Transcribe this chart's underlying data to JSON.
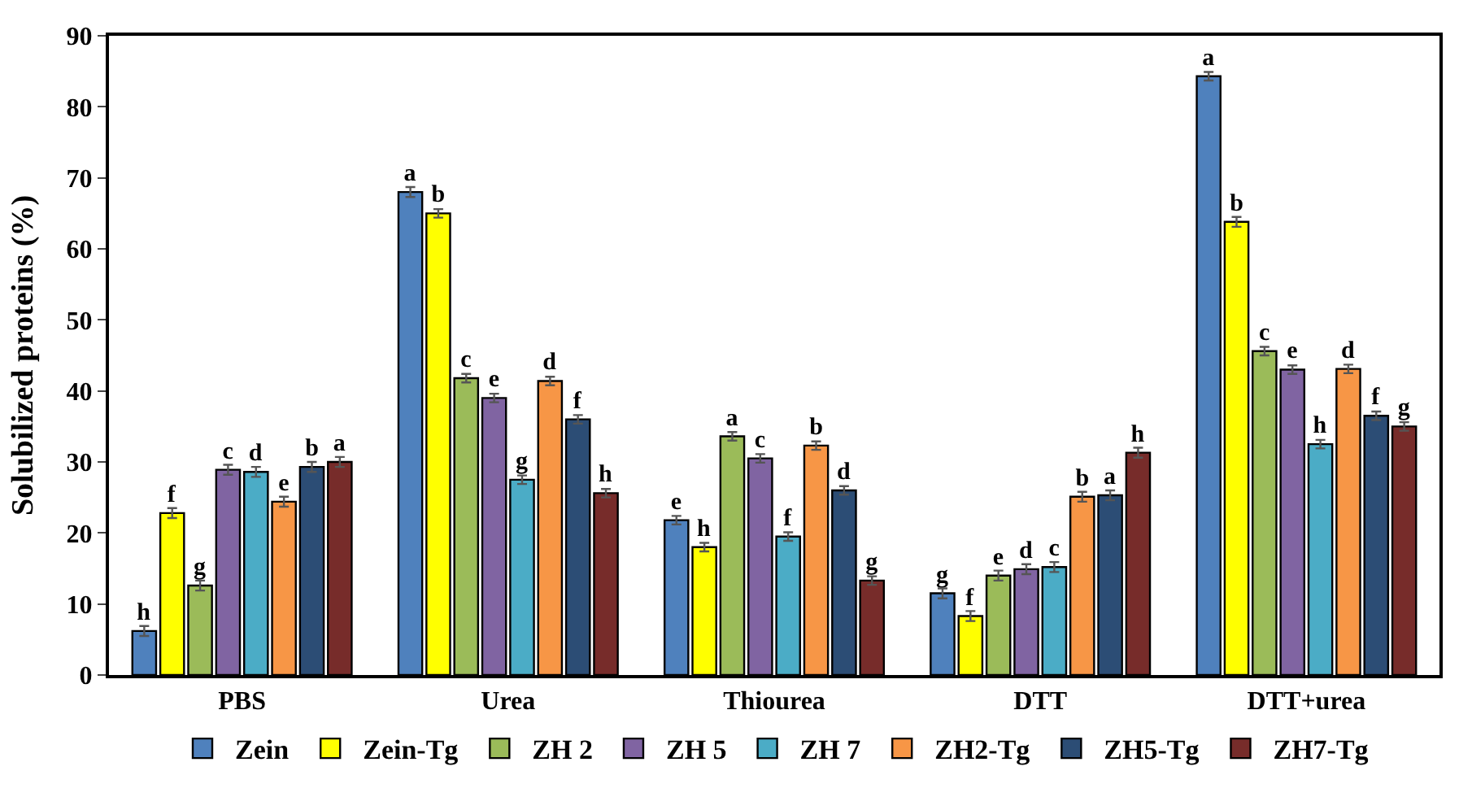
{
  "chart_data": {
    "type": "bar",
    "ylabel": "Solubilized proteins (%)",
    "categories": [
      "PBS",
      "Urea",
      "Thiourea",
      "DTT",
      "DTT+urea"
    ],
    "series": [
      {
        "name": "Zein",
        "color": "#4f81bd",
        "values": [
          6.2,
          68,
          21.8,
          11.5,
          84.3
        ],
        "errors": [
          0.7,
          0.7,
          0.6,
          0.7,
          0.6
        ],
        "value_labels": [
          "h",
          "a",
          "e",
          "g",
          "a"
        ]
      },
      {
        "name": "Zein-Tg",
        "color": "#ffff00",
        "values": [
          22.8,
          65,
          18,
          8.3,
          63.8
        ],
        "errors": [
          0.7,
          0.6,
          0.6,
          0.7,
          0.7
        ],
        "value_labels": [
          "f",
          "b",
          "h",
          "f",
          "b"
        ]
      },
      {
        "name": "ZH 2",
        "color": "#9bbb59",
        "values": [
          12.6,
          41.8,
          33.6,
          14,
          45.6
        ],
        "errors": [
          0.7,
          0.6,
          0.6,
          0.7,
          0.6
        ],
        "value_labels": [
          "g",
          "c",
          "a",
          "e",
          "c"
        ]
      },
      {
        "name": "ZH 5",
        "color": "#8064a2",
        "values": [
          28.9,
          39,
          30.5,
          14.9,
          43
        ],
        "errors": [
          0.7,
          0.6,
          0.6,
          0.7,
          0.6
        ],
        "value_labels": [
          "c",
          "e",
          "c",
          "d",
          "e"
        ]
      },
      {
        "name": "ZH 7",
        "color": "#4bacc6",
        "values": [
          28.6,
          27.5,
          19.5,
          15.2,
          32.5
        ],
        "errors": [
          0.7,
          0.6,
          0.6,
          0.7,
          0.6
        ],
        "value_labels": [
          "d",
          "g",
          "f",
          "c",
          "h"
        ]
      },
      {
        "name": "ZH2-Tg",
        "color": "#f79646",
        "values": [
          24.4,
          41.4,
          32.3,
          25.1,
          43.1
        ],
        "errors": [
          0.7,
          0.6,
          0.6,
          0.7,
          0.6
        ],
        "value_labels": [
          "e",
          "d",
          "b",
          "b",
          "d"
        ]
      },
      {
        "name": "ZH5-Tg",
        "color": "#2c4d75",
        "values": [
          29.3,
          36,
          26,
          25.3,
          36.5
        ],
        "errors": [
          0.7,
          0.6,
          0.6,
          0.7,
          0.6
        ],
        "value_labels": [
          "b",
          "f",
          "d",
          "a",
          "f"
        ]
      },
      {
        "name": "ZH7-Tg",
        "color": "#772c2a",
        "values": [
          30.0,
          25.6,
          13.3,
          31.3,
          35
        ],
        "errors": [
          0.7,
          0.6,
          0.6,
          0.7,
          0.6
        ],
        "value_labels": [
          "a",
          "h",
          "g",
          "h",
          "g"
        ]
      }
    ],
    "ylim": [
      0,
      90
    ],
    "yticks": [
      0,
      10,
      20,
      30,
      40,
      50,
      60,
      70,
      80,
      90
    ],
    "legend": "bottom"
  }
}
